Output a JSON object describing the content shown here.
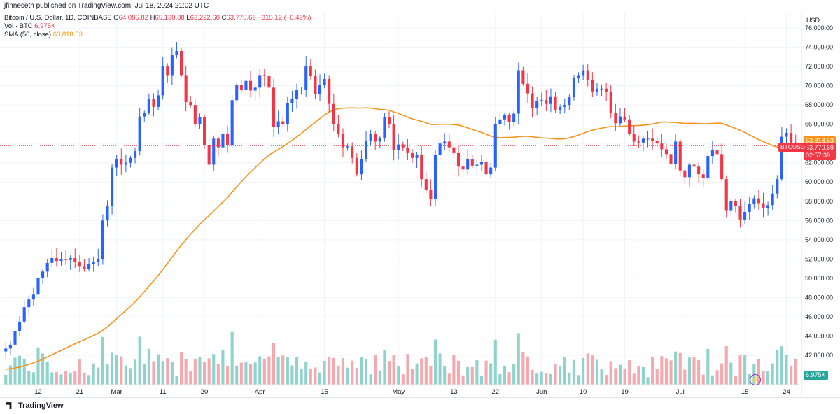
{
  "header": {
    "publisher": "jfinneseth published on TradingView.com, Jul 18, 2024 21:02 UTC"
  },
  "legend": {
    "symbol": "Bitcoin / U.S. Dollar, 1D, COINBASE",
    "open_k": "O",
    "open": "64,085.82",
    "high_k": "H",
    "high": "65,130.88",
    "low_k": "L",
    "low": "63,222.60",
    "close_k": "C",
    "close": "63,770.69",
    "change": "−315.12 (−0.49%)",
    "volume_label": "Vol · BTC",
    "volume_value": "6.975K",
    "sma_label": "SMA (50, close)",
    "sma_value": "63,818.53"
  },
  "price_axis": {
    "currency": "USD",
    "sma_tag": "63,818.53",
    "last_price": "63,770.69",
    "countdown": "02:57:39",
    "symbol_tag": "BTCUSD",
    "volume_tag": "6.975K"
  },
  "footer": {
    "brand": "TradingView"
  },
  "colors": {
    "up": "#2962ff",
    "down": "#f23645",
    "sma": "#f7931a",
    "vol_up": "#8fd3cc",
    "vol_down": "#f4a9ae",
    "grid": "#f0f3fa"
  },
  "icons": {
    "alert": "lightning-icon",
    "logo": "tradingview-logo-icon"
  },
  "chart_data": {
    "type": "candlestick",
    "title": "Bitcoin / U.S. Dollar, 1D, COINBASE",
    "ylim": [
      41000,
      77000
    ],
    "y_ticks": [
      42000,
      44000,
      46000,
      48000,
      50000,
      52000,
      54000,
      56000,
      58000,
      60000,
      62000,
      64000,
      66000,
      68000,
      70000,
      72000,
      74000,
      76000
    ],
    "y_tick_labels": [
      "42,000.00",
      "44,000.00",
      "46,000.00",
      "48,000.00",
      "50,000.00",
      "52,000.00",
      "54,000.00",
      "56,000.00",
      "58,000.00",
      "60,000.00",
      "62,000.00",
      "64,000.00",
      "66,000.00",
      "68,000.00",
      "70,000.00",
      "72,000.00",
      "74,000.00",
      "76,000.00"
    ],
    "x_ticks": [
      {
        "label": "12",
        "i": 7
      },
      {
        "label": "21",
        "i": 16
      },
      {
        "label": "Mar",
        "i": 24
      },
      {
        "label": "11",
        "i": 34
      },
      {
        "label": "20",
        "i": 43
      },
      {
        "label": "Apr",
        "i": 55
      },
      {
        "label": "15",
        "i": 69
      },
      {
        "label": "May",
        "i": 85
      },
      {
        "label": "13",
        "i": 97
      },
      {
        "label": "22",
        "i": 106
      },
      {
        "label": "Jun",
        "i": 116
      },
      {
        "label": "10",
        "i": 125
      },
      {
        "label": "19",
        "i": 134
      },
      {
        "label": "Jul",
        "i": 146
      },
      {
        "label": "15",
        "i": 160
      },
      {
        "label": "24",
        "i": 169
      }
    ],
    "n_slots": 172,
    "closes": [
      42700,
      43100,
      44500,
      45500,
      47000,
      47800,
      48300,
      50000,
      50700,
      51600,
      52100,
      51800,
      52000,
      51900,
      52100,
      51700,
      51200,
      51000,
      51500,
      51700,
      52000,
      56000,
      57500,
      61500,
      62400,
      61800,
      62000,
      62500,
      63200,
      66800,
      67200,
      68600,
      67800,
      69000,
      72000,
      71100,
      73200,
      73600,
      71100,
      68300,
      68000,
      66000,
      66700,
      63800,
      61800,
      64500,
      63600,
      65000,
      63800,
      68500,
      70100,
      69600,
      70500,
      69500,
      69800,
      71100,
      71000,
      69800,
      65700,
      66300,
      66000,
      68200,
      68600,
      69600,
      69600,
      72000,
      71000,
      69100,
      70100,
      70700,
      68100,
      66000,
      65000,
      63600,
      63700,
      62500,
      60800,
      62400,
      64300,
      65000,
      64200,
      64600,
      66700,
      66000,
      63300,
      63900,
      63600,
      63000,
      62500,
      62800,
      60300,
      59200,
      58200,
      62800,
      64000,
      64200,
      63600,
      63000,
      61600,
      61300,
      62400,
      61700,
      61800,
      62100,
      60800,
      61500,
      66000,
      66500,
      67000,
      66200,
      67100,
      71600,
      70200,
      69200,
      67700,
      68400,
      68500,
      68100,
      68900,
      67500,
      67800,
      68000,
      68800,
      70800,
      71100,
      71600,
      70600,
      69400,
      69700,
      69700,
      69400,
      67200,
      66100,
      66800,
      66500,
      65000,
      64200,
      64100,
      64500,
      64500,
      64300,
      64000,
      63400,
      62900,
      61900,
      64200,
      61200,
      60500,
      61800,
      61600,
      60800,
      60400,
      62700,
      63300,
      62900,
      60300,
      57000,
      58000,
      57500,
      56100,
      56900,
      57700,
      58300,
      57800,
      57300,
      57600,
      58800,
      60300,
      64700,
      65100,
      64100,
      63770
    ]
  }
}
